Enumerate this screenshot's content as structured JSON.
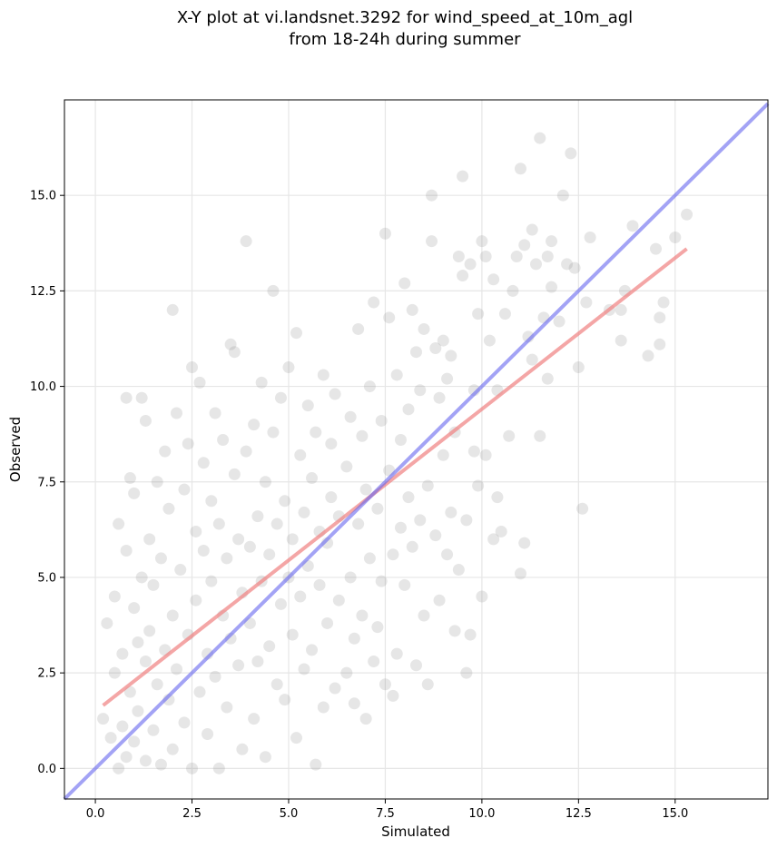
{
  "chart_data": {
    "type": "scatter",
    "title_lines": [
      "X-Y plot at vi.landsnet.3292 for wind_speed_at_10m_agl",
      "from 18-24h during summer"
    ],
    "xlabel": "Simulated",
    "ylabel": "Observed",
    "xlim": [
      -0.8,
      17.4
    ],
    "ylim": [
      -0.8,
      17.5
    ],
    "x_ticks": [
      0.0,
      2.5,
      5.0,
      7.5,
      10.0,
      12.5,
      15.0
    ],
    "x_tick_labels": [
      "0.0",
      "2.5",
      "5.0",
      "7.5",
      "10.0",
      "12.5",
      "15.0"
    ],
    "y_ticks": [
      0.0,
      2.5,
      5.0,
      7.5,
      10.0,
      12.5,
      15.0
    ],
    "y_tick_labels": [
      "0.0",
      "2.5",
      "5.0",
      "7.5",
      "10.0",
      "12.5",
      "15.0"
    ],
    "grid": true,
    "point_color": "#808080",
    "points": [
      [
        0.2,
        1.3
      ],
      [
        0.3,
        3.8
      ],
      [
        0.4,
        0.8
      ],
      [
        0.5,
        2.5
      ],
      [
        0.5,
        4.5
      ],
      [
        0.6,
        0.0
      ],
      [
        0.6,
        6.4
      ],
      [
        0.7,
        1.1
      ],
      [
        0.7,
        3.0
      ],
      [
        0.8,
        5.7
      ],
      [
        0.8,
        9.7
      ],
      [
        0.8,
        0.3
      ],
      [
        0.9,
        7.6
      ],
      [
        0.9,
        2.0
      ],
      [
        1.0,
        4.2
      ],
      [
        1.0,
        0.7
      ],
      [
        1.0,
        7.2
      ],
      [
        1.1,
        1.5
      ],
      [
        1.1,
        3.3
      ],
      [
        1.2,
        9.7
      ],
      [
        1.2,
        5.0
      ],
      [
        1.3,
        9.1
      ],
      [
        1.3,
        0.2
      ],
      [
        1.3,
        2.8
      ],
      [
        1.4,
        6.0
      ],
      [
        1.4,
        3.6
      ],
      [
        1.5,
        1.0
      ],
      [
        1.5,
        4.8
      ],
      [
        1.6,
        7.5
      ],
      [
        1.6,
        2.2
      ],
      [
        1.7,
        0.1
      ],
      [
        1.7,
        5.5
      ],
      [
        1.8,
        3.1
      ],
      [
        1.8,
        8.3
      ],
      [
        1.9,
        1.8
      ],
      [
        1.9,
        6.8
      ],
      [
        2.0,
        12.0
      ],
      [
        2.0,
        4.0
      ],
      [
        2.0,
        0.5
      ],
      [
        2.1,
        9.3
      ],
      [
        2.1,
        2.6
      ],
      [
        2.2,
        5.2
      ],
      [
        2.3,
        1.2
      ],
      [
        2.3,
        7.3
      ],
      [
        2.4,
        3.5
      ],
      [
        2.4,
        8.5
      ],
      [
        2.5,
        10.5
      ],
      [
        2.5,
        0.0
      ],
      [
        2.6,
        6.2
      ],
      [
        2.6,
        4.4
      ],
      [
        2.7,
        2.0
      ],
      [
        2.7,
        10.1
      ],
      [
        2.8,
        8.0
      ],
      [
        2.8,
        5.7
      ],
      [
        2.9,
        3.0
      ],
      [
        2.9,
        0.9
      ],
      [
        3.0,
        7.0
      ],
      [
        3.0,
        4.9
      ],
      [
        3.1,
        9.3
      ],
      [
        3.1,
        2.4
      ],
      [
        3.2,
        6.4
      ],
      [
        3.2,
        0.0
      ],
      [
        3.3,
        8.6
      ],
      [
        3.3,
        4.0
      ],
      [
        3.4,
        5.5
      ],
      [
        3.4,
        1.6
      ],
      [
        3.5,
        11.1
      ],
      [
        3.5,
        3.4
      ],
      [
        3.6,
        7.7
      ],
      [
        3.6,
        10.9
      ],
      [
        3.7,
        2.7
      ],
      [
        3.7,
        6.0
      ],
      [
        3.8,
        4.6
      ],
      [
        3.8,
        0.5
      ],
      [
        3.9,
        13.8
      ],
      [
        3.9,
        8.3
      ],
      [
        4.0,
        3.8
      ],
      [
        4.0,
        5.8
      ],
      [
        4.1,
        9.0
      ],
      [
        4.1,
        1.3
      ],
      [
        4.2,
        6.6
      ],
      [
        4.2,
        2.8
      ],
      [
        4.3,
        10.1
      ],
      [
        4.3,
        4.9
      ],
      [
        4.4,
        7.5
      ],
      [
        4.4,
        0.3
      ],
      [
        4.5,
        3.2
      ],
      [
        4.5,
        5.6
      ],
      [
        4.6,
        12.5
      ],
      [
        4.6,
        8.8
      ],
      [
        4.7,
        2.2
      ],
      [
        4.7,
        6.4
      ],
      [
        4.8,
        4.3
      ],
      [
        4.8,
        9.7
      ],
      [
        4.9,
        1.8
      ],
      [
        4.9,
        7.0
      ],
      [
        5.0,
        5.0
      ],
      [
        5.0,
        10.5
      ],
      [
        5.1,
        3.5
      ],
      [
        5.1,
        6.0
      ],
      [
        5.2,
        11.4
      ],
      [
        5.2,
        0.8
      ],
      [
        5.3,
        8.2
      ],
      [
        5.3,
        4.5
      ],
      [
        5.4,
        6.7
      ],
      [
        5.4,
        2.6
      ],
      [
        5.5,
        9.5
      ],
      [
        5.5,
        5.3
      ],
      [
        5.6,
        3.1
      ],
      [
        5.6,
        7.6
      ],
      [
        5.7,
        0.1
      ],
      [
        5.7,
        8.8
      ],
      [
        5.8,
        4.8
      ],
      [
        5.8,
        6.2
      ],
      [
        5.9,
        1.6
      ],
      [
        5.9,
        10.3
      ],
      [
        6.0,
        5.9
      ],
      [
        6.0,
        3.8
      ],
      [
        6.1,
        8.5
      ],
      [
        6.1,
        7.1
      ],
      [
        6.2,
        2.1
      ],
      [
        6.2,
        9.8
      ],
      [
        6.3,
        4.4
      ],
      [
        6.3,
        6.6
      ],
      [
        6.5,
        7.9
      ],
      [
        6.5,
        2.5
      ],
      [
        6.6,
        5.0
      ],
      [
        6.6,
        9.2
      ],
      [
        6.7,
        1.7
      ],
      [
        6.7,
        3.4
      ],
      [
        6.8,
        11.5
      ],
      [
        6.8,
        6.4
      ],
      [
        6.9,
        8.7
      ],
      [
        6.9,
        4.0
      ],
      [
        7.0,
        1.3
      ],
      [
        7.0,
        7.3
      ],
      [
        7.1,
        10.0
      ],
      [
        7.1,
        5.5
      ],
      [
        7.2,
        2.8
      ],
      [
        7.2,
        12.2
      ],
      [
        7.3,
        6.8
      ],
      [
        7.3,
        3.7
      ],
      [
        7.4,
        9.1
      ],
      [
        7.4,
        4.9
      ],
      [
        7.5,
        14.0
      ],
      [
        7.5,
        2.2
      ],
      [
        7.6,
        7.8
      ],
      [
        7.6,
        11.8
      ],
      [
        7.7,
        5.6
      ],
      [
        7.7,
        1.9
      ],
      [
        7.8,
        10.3
      ],
      [
        7.8,
        3.0
      ],
      [
        7.9,
        6.3
      ],
      [
        7.9,
        8.6
      ],
      [
        8.0,
        12.7
      ],
      [
        8.0,
        4.8
      ],
      [
        8.1,
        9.4
      ],
      [
        8.1,
        7.1
      ],
      [
        8.2,
        12.0
      ],
      [
        8.2,
        5.8
      ],
      [
        8.3,
        10.9
      ],
      [
        8.3,
        2.7
      ],
      [
        8.4,
        6.5
      ],
      [
        8.4,
        9.9
      ],
      [
        8.5,
        11.5
      ],
      [
        8.5,
        4.0
      ],
      [
        8.6,
        7.4
      ],
      [
        8.6,
        2.2
      ],
      [
        8.7,
        15.0
      ],
      [
        8.7,
        13.8
      ],
      [
        8.8,
        11.0
      ],
      [
        8.8,
        6.1
      ],
      [
        8.9,
        9.7
      ],
      [
        8.9,
        4.4
      ],
      [
        9.0,
        8.2
      ],
      [
        9.0,
        11.2
      ],
      [
        9.1,
        10.2
      ],
      [
        9.1,
        5.6
      ],
      [
        9.2,
        6.7
      ],
      [
        9.2,
        10.8
      ],
      [
        9.3,
        3.6
      ],
      [
        9.3,
        8.8
      ],
      [
        9.4,
        13.4
      ],
      [
        9.4,
        5.2
      ],
      [
        9.5,
        15.5
      ],
      [
        9.5,
        12.9
      ],
      [
        9.6,
        2.5
      ],
      [
        9.6,
        6.5
      ],
      [
        9.7,
        13.2
      ],
      [
        9.7,
        3.5
      ],
      [
        9.8,
        9.9
      ],
      [
        9.8,
        8.3
      ],
      [
        9.9,
        7.4
      ],
      [
        9.9,
        11.9
      ],
      [
        10.0,
        13.8
      ],
      [
        10.0,
        4.5
      ],
      [
        10.1,
        8.2
      ],
      [
        10.1,
        13.4
      ],
      [
        10.2,
        11.2
      ],
      [
        10.3,
        6.0
      ],
      [
        10.3,
        12.8
      ],
      [
        10.4,
        7.1
      ],
      [
        10.4,
        9.9
      ],
      [
        10.5,
        6.2
      ],
      [
        10.6,
        11.9
      ],
      [
        10.7,
        8.7
      ],
      [
        10.8,
        12.5
      ],
      [
        10.9,
        13.4
      ],
      [
        11.0,
        15.7
      ],
      [
        11.0,
        5.1
      ],
      [
        11.1,
        5.9
      ],
      [
        11.1,
        13.7
      ],
      [
        11.2,
        11.3
      ],
      [
        11.3,
        14.1
      ],
      [
        11.3,
        10.7
      ],
      [
        11.4,
        13.2
      ],
      [
        11.5,
        16.5
      ],
      [
        11.5,
        8.7
      ],
      [
        11.6,
        11.8
      ],
      [
        11.7,
        13.4
      ],
      [
        11.7,
        10.2
      ],
      [
        11.8,
        13.8
      ],
      [
        11.8,
        12.6
      ],
      [
        12.0,
        11.7
      ],
      [
        12.1,
        15.0
      ],
      [
        12.2,
        13.2
      ],
      [
        12.3,
        16.1
      ],
      [
        12.4,
        13.1
      ],
      [
        12.5,
        10.5
      ],
      [
        12.6,
        6.8
      ],
      [
        12.7,
        12.2
      ],
      [
        12.8,
        13.9
      ],
      [
        13.3,
        12.0
      ],
      [
        13.6,
        11.2
      ],
      [
        13.6,
        12.0
      ],
      [
        13.7,
        12.5
      ],
      [
        13.9,
        14.2
      ],
      [
        14.3,
        10.8
      ],
      [
        14.5,
        13.6
      ],
      [
        14.6,
        11.1
      ],
      [
        14.6,
        11.8
      ],
      [
        14.7,
        12.2
      ],
      [
        15.0,
        13.9
      ],
      [
        15.3,
        14.5
      ]
    ],
    "regression_line": {
      "color": "#f08080",
      "x": [
        0.2,
        15.3
      ],
      "y": [
        1.65,
        13.6
      ]
    },
    "identity_line": {
      "color": "#6666ee",
      "x": [
        -0.8,
        17.4
      ],
      "y": [
        -0.8,
        17.4
      ]
    }
  }
}
